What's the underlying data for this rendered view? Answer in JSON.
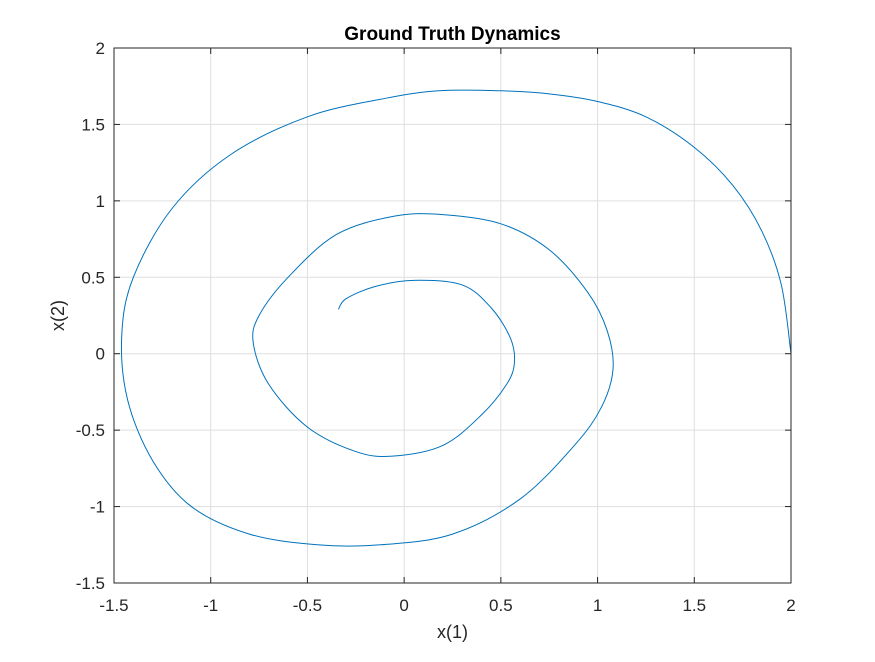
{
  "chart_data": {
    "type": "line",
    "title": "Ground Truth Dynamics",
    "xlabel": "x(1)",
    "ylabel": "x(2)",
    "xlim": [
      -1.5,
      2
    ],
    "ylim": [
      -1.5,
      2
    ],
    "xticks": [
      -1.5,
      -1,
      -0.5,
      0,
      0.5,
      1,
      1.5,
      2
    ],
    "yticks": [
      -1.5,
      -1,
      -0.5,
      0,
      0.5,
      1,
      1.5,
      2
    ],
    "xtick_labels": [
      "-1.5",
      "-1",
      "-0.5",
      "0",
      "0.5",
      "1",
      "1.5",
      "2"
    ],
    "ytick_labels": [
      "-1.5",
      "-1",
      "-0.5",
      "0",
      "0.5",
      "1",
      "1.5",
      "2"
    ],
    "grid": true,
    "legend": "none",
    "color": "#0072bd",
    "series": [
      {
        "x": [
          2.0,
          1.95,
          1.85,
          1.7,
          1.5,
          1.25,
          1.0,
          0.75,
          0.5,
          0.18,
          -0.1,
          -0.5,
          -0.9,
          -1.2,
          -1.4,
          -1.46,
          -1.43,
          -1.3,
          -1.1,
          -0.8,
          -0.45,
          -0.12,
          0.25,
          0.6,
          0.88,
          1.02,
          1.08,
          1.05,
          0.95,
          0.75,
          0.5,
          0.2,
          -0.05,
          -0.35,
          -0.6,
          -0.75,
          -0.78,
          -0.7,
          -0.5,
          -0.25,
          -0.06,
          0.2,
          0.4,
          0.53,
          0.57,
          0.55,
          0.45,
          0.3,
          0.05,
          -0.15,
          -0.3,
          -0.34
        ],
        "y": [
          0.0,
          0.45,
          0.8,
          1.1,
          1.35,
          1.55,
          1.65,
          1.7,
          1.72,
          1.72,
          1.67,
          1.55,
          1.3,
          0.95,
          0.5,
          0.12,
          -0.3,
          -0.7,
          -1.0,
          -1.18,
          -1.25,
          -1.25,
          -1.18,
          -0.95,
          -0.6,
          -0.35,
          -0.1,
          0.15,
          0.4,
          0.68,
          0.85,
          0.91,
          0.9,
          0.78,
          0.5,
          0.25,
          0.07,
          -0.2,
          -0.48,
          -0.64,
          -0.67,
          -0.6,
          -0.4,
          -0.2,
          -0.06,
          0.1,
          0.3,
          0.45,
          0.48,
          0.44,
          0.36,
          0.29
        ]
      }
    ]
  }
}
